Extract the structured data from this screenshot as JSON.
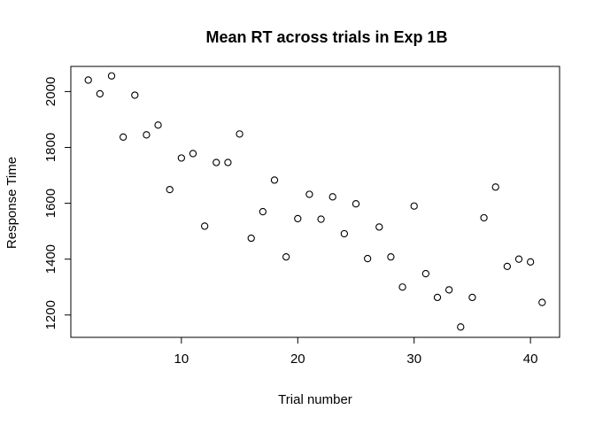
{
  "chart_data": {
    "type": "scatter",
    "title": "Mean RT across trials in Exp 1B",
    "xlabel": "Trial number",
    "ylabel": "Response Time",
    "xlim": [
      0.5,
      42.5
    ],
    "ylim": [
      1120,
      2090
    ],
    "x_ticks": [
      10,
      20,
      30,
      40
    ],
    "y_ticks": [
      1200,
      1400,
      1600,
      1800,
      2000
    ],
    "grid": false,
    "legend": "none",
    "x": [
      2,
      3,
      4,
      5,
      6,
      7,
      8,
      9,
      10,
      11,
      12,
      13,
      14,
      15,
      16,
      17,
      18,
      19,
      20,
      21,
      22,
      23,
      24,
      25,
      26,
      27,
      28,
      29,
      30,
      31,
      32,
      33,
      34,
      35,
      36,
      37,
      38,
      39,
      40,
      41
    ],
    "y": [
      2041,
      1992,
      2056,
      1837,
      1987,
      1845,
      1880,
      1649,
      1762,
      1778,
      1518,
      1746,
      1746,
      1848,
      1475,
      1570,
      1683,
      1408,
      1545,
      1632,
      1543,
      1623,
      1491,
      1598,
      1402,
      1515,
      1408,
      1300,
      1590,
      1348,
      1263,
      1290,
      1157,
      1263,
      1548,
      1658,
      1374,
      1400,
      1390,
      1245
    ]
  }
}
